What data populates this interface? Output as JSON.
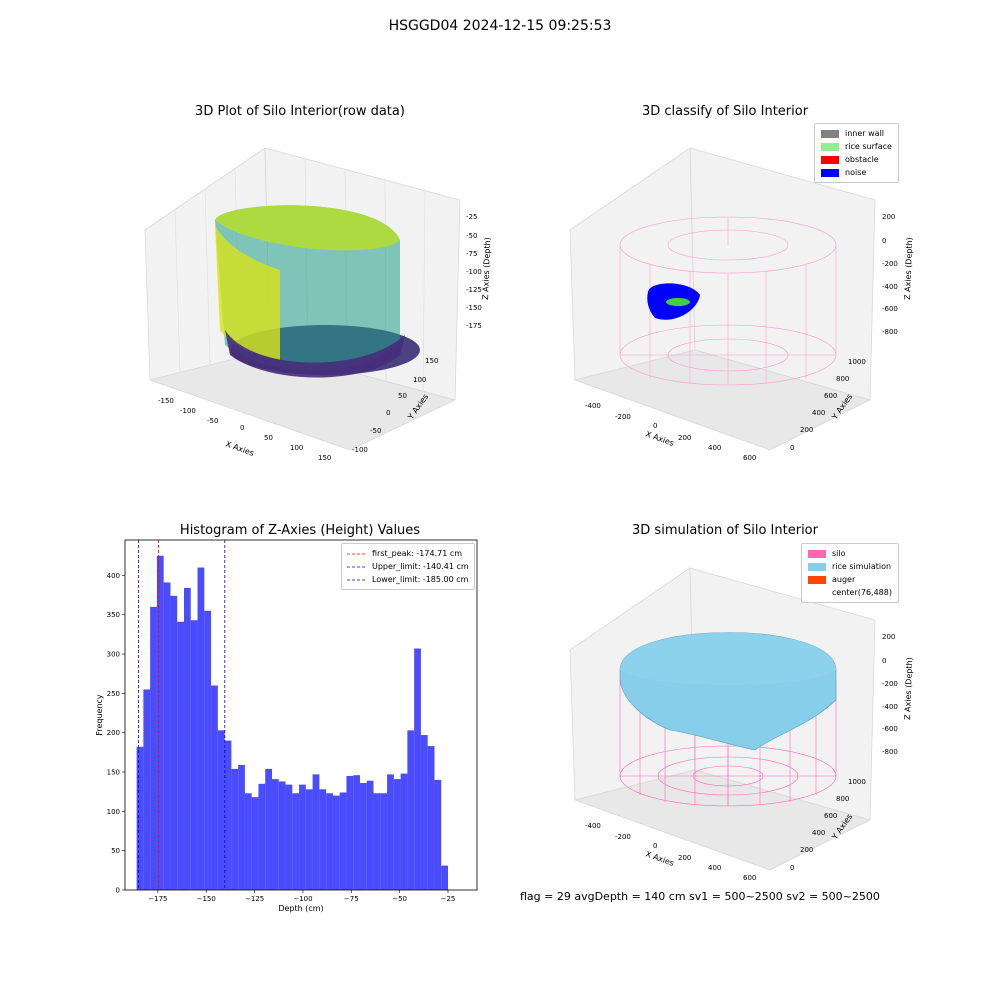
{
  "figure": {
    "suptitle": "HSGGD04 2024-12-15 09:25:53",
    "footer": "flag = 29  avgDepth = 140 cm  sv1 = 500~2500  sv2 = 500~2500"
  },
  "panels": {
    "raw": {
      "title": "3D Plot of Silo Interior(row data)",
      "xlabel": "X Axies",
      "ylabel": "Y Axies",
      "zlabel": "Z Axies (Depth)",
      "xticks": [
        "-150",
        "-100",
        "-50",
        "0",
        "50",
        "100",
        "150"
      ],
      "yticks": [
        "-100",
        "-50",
        "0",
        "50",
        "100",
        "150"
      ],
      "zticks": [
        "-25",
        "-50",
        "-75",
        "-100",
        "-125",
        "-150",
        "-175"
      ]
    },
    "classify": {
      "title": "3D classify of Silo Interior",
      "xlabel": "X Axies",
      "ylabel": "Y Axies",
      "zlabel": "Z Axies (Depth)",
      "xticks": [
        "-400",
        "-200",
        "0",
        "200",
        "400",
        "600"
      ],
      "yticks": [
        "0",
        "200",
        "400",
        "600",
        "800",
        "1000"
      ],
      "zticks": [
        "200",
        "0",
        "-200",
        "-400",
        "-600",
        "-800"
      ],
      "legend": [
        {
          "label": "inner wall",
          "color": "#808080"
        },
        {
          "label": "rice surface",
          "color": "#90ee90"
        },
        {
          "label": "obstacle",
          "color": "#ff0000"
        },
        {
          "label": "noise",
          "color": "#0000ff"
        }
      ]
    },
    "simulation": {
      "title": "3D simulation of Silo Interior",
      "xlabel": "X Axies",
      "ylabel": "Y Axies",
      "zlabel": "Z Axies (Depth)",
      "xticks": [
        "-400",
        "-200",
        "0",
        "200",
        "400",
        "600"
      ],
      "yticks": [
        "0",
        "200",
        "400",
        "600",
        "800",
        "1000"
      ],
      "zticks": [
        "200",
        "0",
        "-200",
        "-400",
        "-600",
        "-800"
      ],
      "legend": [
        {
          "label": "silo",
          "color": "#ff69b4"
        },
        {
          "label": "rice simulation",
          "color": "#87ceeb"
        },
        {
          "label": "auger",
          "color": "#ff4500"
        },
        {
          "label": "center(76,488)",
          "color": ""
        }
      ]
    }
  },
  "chart_data": {
    "type": "bar",
    "title": "Histogram of Z-Axies (Height) Values",
    "xlabel": "Depth (cm)",
    "ylabel": "Frequency",
    "xlim": [
      -192,
      -10
    ],
    "ylim": [
      0,
      445
    ],
    "bin_width": 3.5,
    "bin_start": -186,
    "values": [
      182,
      255,
      360,
      425,
      391,
      374,
      341,
      384,
      343,
      410,
      355,
      260,
      203,
      190,
      154,
      159,
      123,
      118,
      135,
      154,
      141,
      138,
      134,
      123,
      134,
      128,
      147,
      128,
      123,
      120,
      124,
      145,
      146,
      136,
      139,
      123,
      123,
      147,
      141,
      148,
      203,
      307,
      197,
      183,
      140,
      31
    ],
    "xticks": [
      -175,
      -150,
      -125,
      -100,
      -75,
      -50,
      -25
    ],
    "xtick_labels": [
      "−175",
      "−150",
      "−125",
      "−100",
      "−75",
      "−50",
      "−25"
    ],
    "yticks": [
      0,
      50,
      100,
      150,
      200,
      250,
      300,
      350,
      400
    ],
    "bar_color": "#0000ff",
    "vlines": [
      {
        "name": "first_peak",
        "value": -174.71,
        "label": "first_peak: -174.71 cm",
        "color": "#ff0000"
      },
      {
        "name": "upper_limit",
        "value": -140.41,
        "label": "Upper_limit: -140.41 cm",
        "color": "#0000ff"
      },
      {
        "name": "lower_limit",
        "value": -185.0,
        "label": "Lower_limit: -185.00 cm",
        "color": "#0000ff"
      }
    ],
    "legend_position": "top-right"
  }
}
